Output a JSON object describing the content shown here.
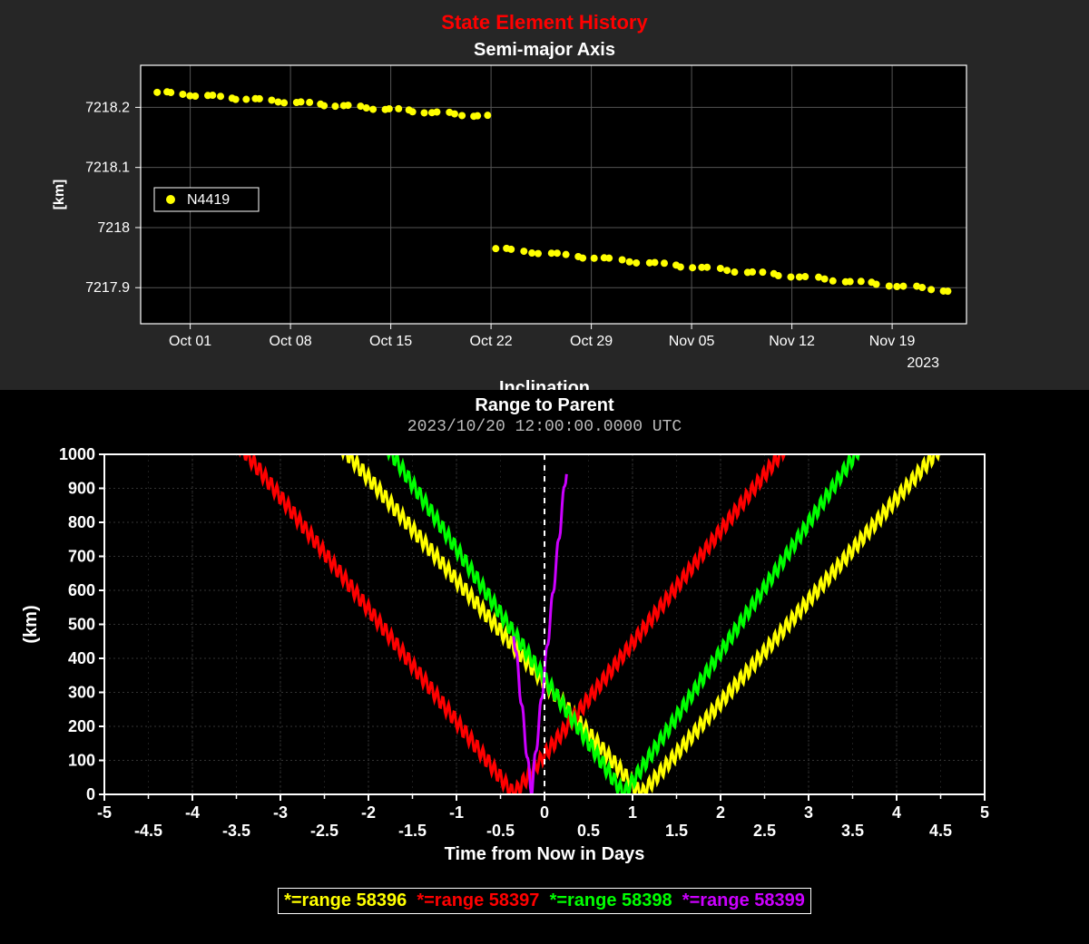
{
  "top": {
    "header": "State Element History",
    "subtitle": "Semi-major Axis",
    "ylabel": "[km]",
    "year_label": "2023",
    "partial_next_title": "Inclination",
    "legend": {
      "marker_color": "#ffff00",
      "label": "N4419"
    },
    "plot": {
      "bg": "#000000",
      "panel_bg": "#262626",
      "grid_color": "#555555",
      "axis_color": "#ffffff",
      "tick_color": "#ffffff",
      "tick_font": 16,
      "x_ticks": [
        "Oct 01",
        "Oct 08",
        "Oct 15",
        "Oct 22",
        "Oct 29",
        "Nov 05",
        "Nov 12",
        "Nov 19"
      ],
      "y_ticks": [
        7217.9,
        7218,
        7218.1,
        7218.2
      ],
      "xlim": [
        "Sep 27",
        "Nov 23"
      ],
      "ylim": [
        7217.84,
        7218.27
      ],
      "marker_color": "#ffff00",
      "marker_size": 4,
      "series": {
        "left_segment": {
          "x_start": 0.02,
          "x_end": 0.42,
          "y_start": 7218.225,
          "y_end": 7218.185,
          "n": 42
        },
        "right_segment": {
          "x_start": 0.43,
          "x_end": 0.98,
          "y_start": 7217.965,
          "y_end": 7217.895,
          "n": 52
        }
      }
    }
  },
  "bottom": {
    "title": "Range to Parent",
    "timestamp": "2023/10/20 12:00:00.0000 UTC",
    "ylabel": "(km)",
    "xlabel": "Time from Now in Days",
    "plot": {
      "bg": "#000000",
      "axis_color": "#ffffff",
      "grid_major": "#333333",
      "grid_minor": "#1e1e1e",
      "now_line_color": "#ffffff",
      "now_line_dash": "6,6",
      "xlim": [
        -5,
        5
      ],
      "ylim": [
        0,
        1000
      ],
      "x_ticks_major": [
        -5,
        -4,
        -3,
        -2,
        -1,
        0,
        1,
        2,
        3,
        4,
        5
      ],
      "x_ticks_minor": [
        -4.5,
        -3.5,
        -2.5,
        -1.5,
        -0.5,
        0.5,
        1.5,
        2.5,
        3.5,
        4.5
      ],
      "y_ticks": [
        0,
        100,
        200,
        300,
        400,
        500,
        600,
        700,
        800,
        900,
        1000
      ],
      "line_width": 3,
      "wiggle_amp": 22,
      "wiggle_period_days": 0.065,
      "series": [
        {
          "id": "58396",
          "color": "#ffff00",
          "vertex_x": 1.1,
          "slope": 300
        },
        {
          "id": "58397",
          "color": "#ff0000",
          "vertex_x": -0.35,
          "slope": 330
        },
        {
          "id": "58398",
          "color": "#00ff00",
          "vertex_x": 0.9,
          "slope": 380
        },
        {
          "id": "58399",
          "color": "#cc00ff",
          "vertex_x": -0.15,
          "slope": 2400,
          "xspan": [
            -0.35,
            0.25
          ]
        }
      ]
    },
    "legend": [
      {
        "color": "#ffff00",
        "text": "*=range 58396"
      },
      {
        "color": "#ff0000",
        "text": "*=range 58397"
      },
      {
        "color": "#00ff00",
        "text": "*=range 58398"
      },
      {
        "color": "#cc00ff",
        "text": "*=range 58399"
      }
    ]
  }
}
